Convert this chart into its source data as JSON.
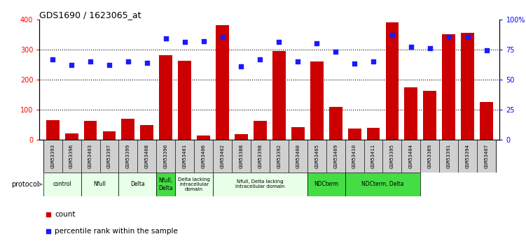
{
  "title": "GDS1690 / 1623065_at",
  "samples": [
    "GSM53393",
    "GSM53396",
    "GSM53403",
    "GSM53397",
    "GSM53399",
    "GSM53408",
    "GSM53390",
    "GSM53401",
    "GSM53406",
    "GSM53402",
    "GSM53388",
    "GSM53398",
    "GSM53392",
    "GSM53400",
    "GSM53405",
    "GSM53409",
    "GSM53410",
    "GSM53411",
    "GSM53395",
    "GSM53404",
    "GSM53389",
    "GSM53391",
    "GSM53394",
    "GSM53407"
  ],
  "counts": [
    65,
    22,
    62,
    28,
    70,
    48,
    280,
    262,
    15,
    380,
    18,
    62,
    295,
    42,
    260,
    110,
    38,
    40,
    390,
    175,
    163,
    350,
    355,
    125
  ],
  "percentiles": [
    67,
    62,
    65,
    62,
    65,
    64,
    84,
    81,
    82,
    85,
    61,
    67,
    81,
    65,
    80,
    73,
    63,
    65,
    87,
    77,
    76,
    85,
    85,
    74
  ],
  "bar_color": "#cc0000",
  "dot_color": "#1a1aff",
  "protocols": [
    {
      "label": "control",
      "start": 0,
      "end": 2,
      "color": "#e8ffe8"
    },
    {
      "label": "Nfull",
      "start": 2,
      "end": 4,
      "color": "#e8ffe8"
    },
    {
      "label": "Delta",
      "start": 4,
      "end": 6,
      "color": "#e8ffe8"
    },
    {
      "label": "Nfull,\nDelta",
      "start": 6,
      "end": 7,
      "color": "#44dd44"
    },
    {
      "label": "Delta lacking\nintracellular\ndomain",
      "start": 7,
      "end": 9,
      "color": "#e8ffe8"
    },
    {
      "label": "Nfull, Delta lacking\nintracellular domain",
      "start": 9,
      "end": 14,
      "color": "#e8ffe8"
    },
    {
      "label": "NDCterm",
      "start": 14,
      "end": 16,
      "color": "#44dd44"
    },
    {
      "label": "NDCterm, Delta",
      "start": 16,
      "end": 20,
      "color": "#44dd44"
    }
  ],
  "left_ylim": [
    0,
    400
  ],
  "right_ylim": [
    0,
    100
  ],
  "left_yticks": [
    0,
    100,
    200,
    300,
    400
  ],
  "right_yticks": [
    0,
    25,
    50,
    75,
    100
  ],
  "right_yticklabels": [
    "0",
    "25",
    "50",
    "75",
    "100%"
  ],
  "legend_count_label": "count",
  "legend_pct_label": "percentile rank within the sample",
  "tick_label_bg": "#d8d8d8"
}
